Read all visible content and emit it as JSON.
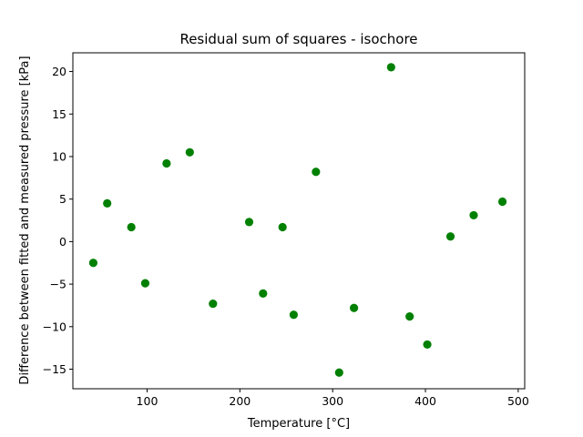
{
  "chart_data": {
    "type": "scatter",
    "title": "Residual sum of squares - isochore",
    "xlabel": "Temperature [°C]",
    "ylabel": "Difference between fitted and measured pressure [kPa]",
    "xlim": [
      20,
      507
    ],
    "ylim": [
      -17.3,
      22.2
    ],
    "xticks": [
      100,
      200,
      300,
      400,
      500
    ],
    "yticks": [
      -15,
      -10,
      -5,
      0,
      5,
      10,
      15,
      20
    ],
    "grid": false,
    "marker_color": "#008000",
    "series": [
      {
        "x": [
          42,
          57,
          83,
          98,
          121,
          146,
          171,
          210,
          225,
          246,
          258,
          282,
          307,
          323,
          363,
          383,
          402,
          427,
          452,
          483
        ],
        "y": [
          -2.5,
          4.5,
          1.7,
          -4.9,
          9.2,
          10.5,
          -7.3,
          2.3,
          -6.1,
          1.7,
          -8.6,
          8.2,
          -15.4,
          -7.8,
          20.5,
          -8.8,
          -12.1,
          0.6,
          3.1,
          4.7
        ]
      }
    ]
  }
}
